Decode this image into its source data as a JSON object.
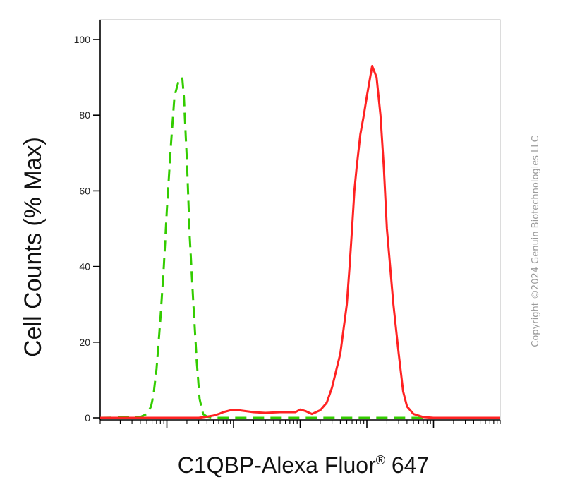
{
  "chart_data": {
    "type": "line",
    "title": "",
    "xlabel": "C1QBP-Alexa Fluor",
    "xlabel_superscript": "®",
    "xlabel_suffix": " 647",
    "ylabel": "Cell Counts (% Max)",
    "ylim": [
      0,
      100
    ],
    "yticks": [
      0,
      20,
      40,
      60,
      80,
      100
    ],
    "xscale": "log",
    "xlim": [
      10,
      10000000
    ],
    "major_x_ticks": [
      100,
      1000,
      10000,
      100000,
      1000000
    ],
    "grid": false,
    "legend": "none",
    "series": [
      {
        "color": "#33cc00",
        "linestyle": "dashed",
        "x": [
          10,
          40,
          50,
          58,
          63,
          70,
          80,
          90,
          100,
          115,
          130,
          150,
          170,
          180,
          200,
          220,
          250,
          280,
          310,
          350,
          400,
          500,
          700,
          10000000
        ],
        "y": [
          0,
          0.2,
          1,
          3,
          6,
          13,
          26,
          40,
          55,
          72,
          85,
          89,
          90,
          85,
          68,
          48,
          30,
          15,
          5,
          1,
          0.3,
          0,
          0,
          0
        ]
      },
      {
        "color": "#ff2222",
        "linestyle": "solid",
        "x": [
          10,
          300,
          400,
          500,
          600,
          700,
          900,
          1200,
          2000,
          3000,
          5000,
          7000,
          8500,
          10000,
          12000,
          15000,
          20000,
          25000,
          30000,
          40000,
          50000,
          55000,
          60000,
          65000,
          70000,
          80000,
          90000,
          100000,
          120000,
          140000,
          160000,
          180000,
          200000,
          250000,
          300000,
          350000,
          400000,
          500000,
          700000,
          1000000,
          10000000
        ],
        "y": [
          0,
          0,
          0.3,
          0.6,
          1,
          1.5,
          2,
          2,
          1.5,
          1.3,
          1.5,
          1.5,
          1.5,
          2.2,
          1.8,
          1,
          2,
          4,
          8,
          17,
          30,
          40,
          50,
          60,
          66,
          75,
          80,
          85,
          93,
          90,
          80,
          66,
          50,
          30,
          17,
          7,
          3,
          1,
          0.2,
          0,
          0
        ]
      }
    ]
  },
  "copyright": "Copyright ©2024 Genuin Biotechnologies LLC"
}
